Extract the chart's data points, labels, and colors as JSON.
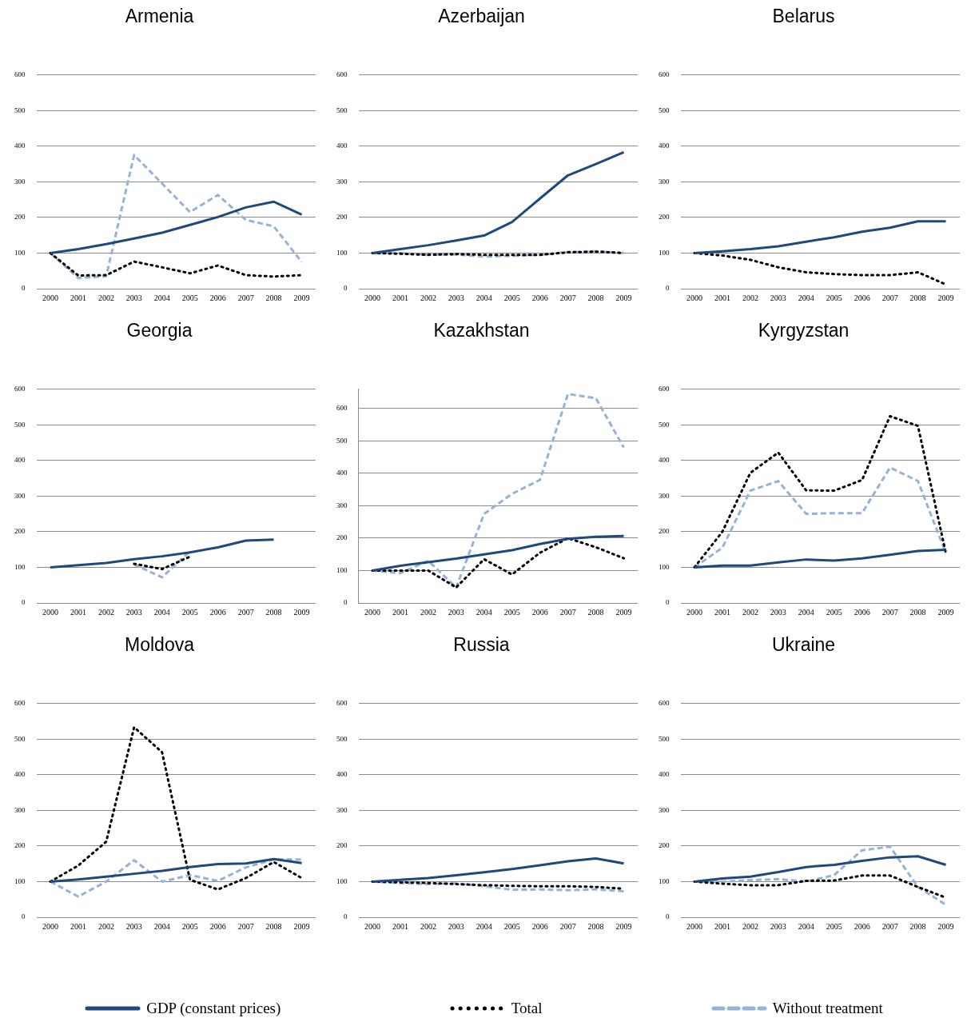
{
  "chart_data": [
    {
      "type": "line",
      "title": "Armenia",
      "categories": [
        "2000",
        "2001",
        "2002",
        "2003",
        "2004",
        "2005",
        "2006",
        "2007",
        "2008",
        "2009"
      ],
      "ylim": [
        0,
        600
      ],
      "yticks": [
        0,
        100,
        200,
        300,
        400,
        500,
        600
      ],
      "grid": "y",
      "legend": "bottom",
      "series": [
        {
          "name": "GDP (constant prices)",
          "color": "#1f497d",
          "line_style": "solid",
          "values": [
            100,
            111,
            125,
            141,
            157,
            179,
            201,
            228,
            244,
            208
          ]
        },
        {
          "name": "Total",
          "color": "#000000",
          "line_style": "dotted",
          "values": [
            100,
            37,
            38,
            76,
            60,
            43,
            65,
            38,
            34,
            38
          ]
        },
        {
          "name": "Without treatment",
          "color": "#95b3d7",
          "line_style": "dashed",
          "values": [
            100,
            30,
            35,
            375,
            295,
            215,
            263,
            193,
            175,
            75
          ]
        }
      ]
    },
    {
      "type": "line",
      "title": "Azerbaijan",
      "categories": [
        "2000",
        "2001",
        "2002",
        "2003",
        "2004",
        "2005",
        "2006",
        "2007",
        "2008",
        "2009"
      ],
      "ylim": [
        0,
        600
      ],
      "yticks": [
        0,
        100,
        200,
        300,
        400,
        500,
        600
      ],
      "grid": "y",
      "series": [
        {
          "color": "#1f497d",
          "line_style": "solid",
          "values": [
            100,
            111,
            122,
            135,
            149,
            187,
            253,
            318,
            350,
            383
          ]
        },
        {
          "color": "#000000",
          "line_style": "dotted",
          "values": [
            100,
            98,
            95,
            97,
            95,
            95,
            95,
            102,
            104,
            100
          ]
        },
        {
          "color": "#95b3d7",
          "line_style": "dashed",
          "values": [
            100,
            100,
            95,
            96,
            90,
            92,
            95,
            103,
            105,
            100
          ]
        }
      ]
    },
    {
      "type": "line",
      "title": "Belarus",
      "categories": [
        "2000",
        "2001",
        "2002",
        "2003",
        "2004",
        "2005",
        "2006",
        "2007",
        "2008",
        "2009"
      ],
      "ylim": [
        0,
        600
      ],
      "yticks": [
        0,
        100,
        200,
        300,
        400,
        500,
        600
      ],
      "grid": "y",
      "series": [
        {
          "color": "#1f497d",
          "line_style": "solid",
          "values": [
            100,
            105,
            111,
            119,
            132,
            144,
            160,
            171,
            189,
            189
          ]
        },
        {
          "color": "#000000",
          "line_style": "dotted",
          "values": [
            100,
            93,
            81,
            60,
            46,
            41,
            38,
            38,
            46,
            12
          ]
        }
      ]
    },
    {
      "type": "line",
      "title": "Georgia",
      "categories": [
        "2000",
        "2001",
        "2002",
        "2003",
        "2004",
        "2005",
        "2006",
        "2007",
        "2008",
        "2009"
      ],
      "ylim": [
        0,
        600
      ],
      "yticks": [
        0,
        100,
        200,
        300,
        400,
        500,
        600
      ],
      "grid": "y",
      "series": [
        {
          "color": "#1f497d",
          "line_style": "solid",
          "values": [
            100,
            106,
            112,
            123,
            131,
            142,
            156,
            175,
            178,
            null
          ]
        },
        {
          "color": "#000000",
          "line_style": "dotted",
          "values": [
            null,
            null,
            null,
            110,
            95,
            130,
            null,
            null,
            null,
            null
          ]
        },
        {
          "color": "#95b3d7",
          "line_style": "dashed",
          "values": [
            null,
            null,
            null,
            108,
            72,
            145,
            null,
            null,
            null,
            null
          ]
        }
      ]
    },
    {
      "type": "line",
      "title": "Kazakhstan",
      "categories": [
        "2000",
        "2001",
        "2002",
        "2003",
        "2004",
        "2005",
        "2006",
        "2007",
        "2008",
        "2009"
      ],
      "ylim": [
        0,
        660
      ],
      "yticks": [
        0,
        100,
        200,
        300,
        400,
        500,
        600
      ],
      "grid": "y",
      "series": [
        {
          "color": "#1f497d",
          "line_style": "solid",
          "values": [
            100,
            115,
            126,
            137,
            150,
            163,
            182,
            198,
            204,
            207
          ]
        },
        {
          "color": "#000000",
          "line_style": "dotted",
          "values": [
            100,
            100,
            100,
            48,
            135,
            88,
            155,
            200,
            172,
            138
          ]
        },
        {
          "color": "#95b3d7",
          "line_style": "dashed",
          "values": [
            100,
            92,
            130,
            48,
            275,
            337,
            380,
            645,
            632,
            480
          ]
        }
      ]
    },
    {
      "type": "line",
      "title": "Kyrgyzstan",
      "categories": [
        "2000",
        "2001",
        "2002",
        "2003",
        "2004",
        "2005",
        "2006",
        "2007",
        "2008",
        "2009"
      ],
      "ylim": [
        0,
        600
      ],
      "yticks": [
        0,
        100,
        200,
        300,
        400,
        500,
        600
      ],
      "grid": "y",
      "series": [
        {
          "color": "#1f497d",
          "line_style": "solid",
          "values": [
            100,
            105,
            105,
            114,
            122,
            119,
            125,
            135,
            146,
            149
          ]
        },
        {
          "color": "#000000",
          "line_style": "dotted",
          "values": [
            100,
            200,
            365,
            422,
            316,
            315,
            345,
            524,
            497,
            140
          ]
        },
        {
          "color": "#95b3d7",
          "line_style": "dashed",
          "values": [
            100,
            155,
            315,
            342,
            250,
            252,
            252,
            380,
            342,
            140
          ]
        }
      ]
    },
    {
      "type": "line",
      "title": "Moldova",
      "categories": [
        "2000",
        "2001",
        "2002",
        "2003",
        "2004",
        "2005",
        "2006",
        "2007",
        "2008",
        "2009"
      ],
      "ylim": [
        0,
        600
      ],
      "yticks": [
        0,
        100,
        200,
        300,
        400,
        500,
        600
      ],
      "grid": "y",
      "series": [
        {
          "color": "#1f497d",
          "line_style": "solid",
          "values": [
            100,
            106,
            114,
            122,
            130,
            141,
            149,
            151,
            163,
            152
          ]
        },
        {
          "color": "#000000",
          "line_style": "dotted",
          "values": [
            100,
            145,
            212,
            533,
            463,
            105,
            78,
            110,
            155,
            110
          ]
        },
        {
          "color": "#95b3d7",
          "line_style": "dashed",
          "values": [
            100,
            58,
            100,
            160,
            100,
            118,
            102,
            140,
            162,
            162
          ]
        }
      ]
    },
    {
      "type": "line",
      "title": "Russia",
      "categories": [
        "2000",
        "2001",
        "2002",
        "2003",
        "2004",
        "2005",
        "2006",
        "2007",
        "2008",
        "2009"
      ],
      "ylim": [
        0,
        600
      ],
      "yticks": [
        0,
        100,
        200,
        300,
        400,
        500,
        600
      ],
      "grid": "y",
      "series": [
        {
          "color": "#1f497d",
          "line_style": "solid",
          "values": [
            100,
            105,
            110,
            118,
            126,
            135,
            146,
            157,
            165,
            151
          ]
        },
        {
          "color": "#000000",
          "line_style": "dotted",
          "values": [
            100,
            98,
            96,
            93,
            90,
            88,
            87,
            87,
            85,
            80
          ]
        },
        {
          "color": "#95b3d7",
          "line_style": "dashed",
          "values": [
            100,
            96,
            93,
            95,
            87,
            77,
            78,
            76,
            78,
            73
          ]
        }
      ]
    },
    {
      "type": "line",
      "title": "Ukraine",
      "categories": [
        "2000",
        "2001",
        "2002",
        "2003",
        "2004",
        "2005",
        "2006",
        "2007",
        "2008",
        "2009"
      ],
      "ylim": [
        0,
        600
      ],
      "yticks": [
        0,
        100,
        200,
        300,
        400,
        500,
        600
      ],
      "grid": "y",
      "series": [
        {
          "color": "#1f497d",
          "line_style": "solid",
          "values": [
            100,
            109,
            114,
            127,
            141,
            147,
            158,
            168,
            171,
            147
          ]
        },
        {
          "color": "#000000",
          "line_style": "dotted",
          "values": [
            100,
            94,
            90,
            90,
            102,
            103,
            117,
            117,
            85,
            55
          ]
        },
        {
          "color": "#95b3d7",
          "line_style": "dashed",
          "values": [
            100,
            100,
            104,
            107,
            100,
            118,
            188,
            198,
            85,
            35
          ]
        }
      ]
    }
  ]
}
